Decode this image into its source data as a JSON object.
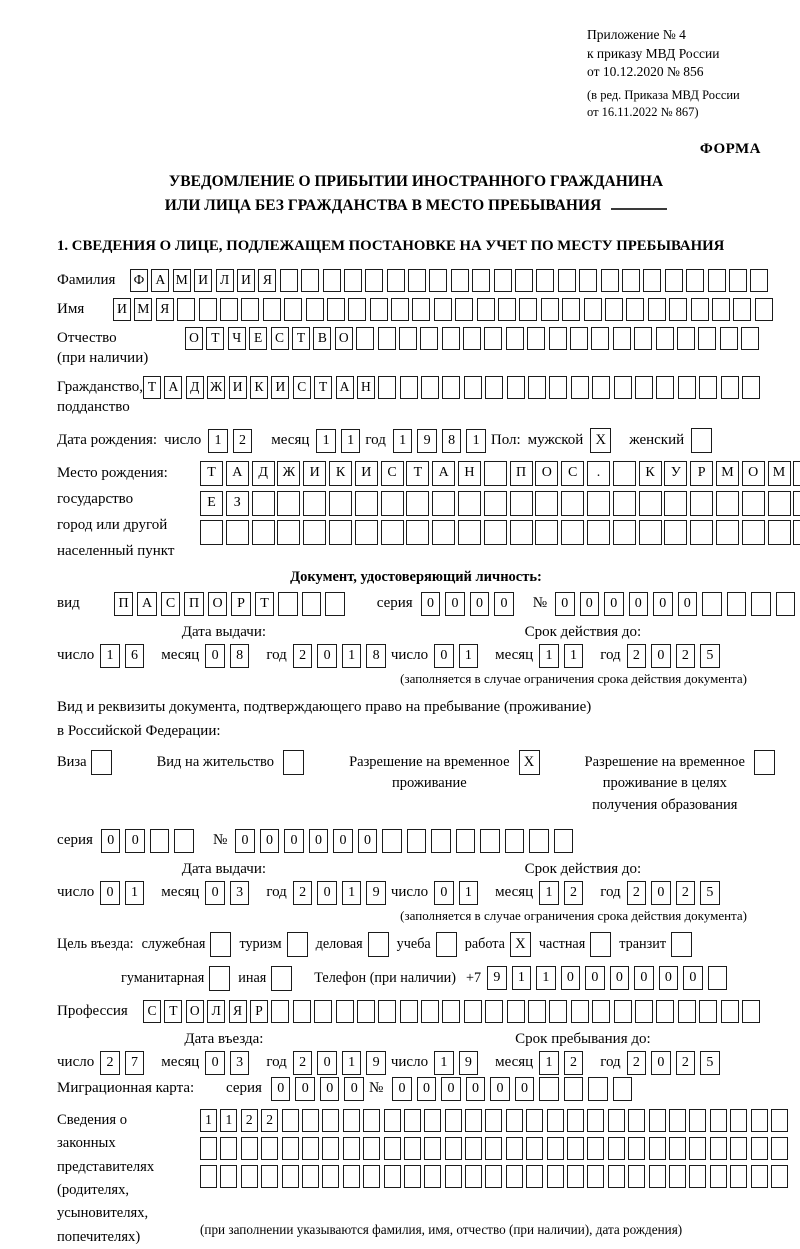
{
  "header": {
    "ref_lines": [
      "Приложение № 4",
      "к приказу МВД России",
      "от 10.12.2020 № 856"
    ],
    "ed_lines": [
      "(в ред. Приказа МВД России",
      "от 16.11.2022 № 867)"
    ],
    "form_label": "ФОРМА"
  },
  "title": {
    "line1": "УВЕДОМЛЕНИЕ О ПРИБЫТИИ ИНОСТРАННОГО ГРАЖДАНИНА",
    "line2": "ИЛИ ЛИЦА БЕЗ ГРАЖДАНСТВА В МЕСТО ПРЕБЫВАНИЯ"
  },
  "section1_heading": "1. СВЕДЕНИЯ О ЛИЦЕ, ПОДЛЕЖАЩЕМ ПОСТАНОВКЕ НА УЧЕТ ПО МЕСТУ ПРЕБЫВАНИЯ",
  "date_labels": {
    "day": "число",
    "month": "месяц",
    "year": "год"
  },
  "shared_labels": {
    "series": "серия",
    "number": "№"
  },
  "surname": {
    "label": "Фамилия",
    "cells": {
      "value": "ФАМИЛИЯ",
      "count": 30
    }
  },
  "name": {
    "label": "Имя",
    "cells": {
      "value": "ИМЯ",
      "count": 31
    }
  },
  "patronymic": {
    "label": "Отчество",
    "sublabel": "(при наличии)",
    "cells": {
      "value": "ОТЧЕСТВО",
      "count": 27
    }
  },
  "citizenship": {
    "label": "Гражданство,",
    "sublabel": "подданство",
    "cells": {
      "value": "ТАДЖИКИСТАН",
      "count": 29
    }
  },
  "birth_date": {
    "label": "Дата рождения:",
    "day": {
      "value": "12",
      "count": 2
    },
    "month": {
      "value": "11",
      "count": 2
    },
    "year": {
      "value": "1981",
      "count": 4
    },
    "sex_label": "Пол:",
    "male_label": "мужской",
    "male_box": {
      "value": "X",
      "count": 1
    },
    "female_label": "женский",
    "female_box": {
      "value": "",
      "count": 1
    }
  },
  "birth_place": {
    "label": "Место рождения:",
    "sub1": "государство",
    "sub2": "город или другой",
    "sub3": "населенный пункт",
    "row1": {
      "value": "ТАДЖИКИСТАН ПОС. КУРМОМБ",
      "count": 24
    },
    "row2": {
      "value": "ЕЗ",
      "count": 24
    },
    "row3": {
      "value": "",
      "count": 24
    }
  },
  "identity_doc": {
    "heading": "Документ, удостоверяющий личность:",
    "type_label": "вид",
    "type": {
      "value": "ПАСПОРТ",
      "count": 10
    },
    "series": {
      "value": "0000",
      "count": 4
    },
    "number": {
      "value": "000000",
      "count": 11
    }
  },
  "identity_dates": {
    "issue_title": "Дата выдачи:",
    "expiry_title": "Срок действия до:",
    "issue": {
      "day": {
        "value": "16",
        "count": 2
      },
      "month": {
        "value": "08",
        "count": 2
      },
      "year": {
        "value": "2018",
        "count": 4
      }
    },
    "expiry": {
      "day": {
        "value": "01",
        "count": 2
      },
      "month": {
        "value": "11",
        "count": 2
      },
      "year": {
        "value": "2025",
        "count": 4
      }
    },
    "note": "(заполняется в случае ограничения срока действия документа)"
  },
  "stay_doc": {
    "line1": "Вид и реквизиты документа, подтверждающего право на пребывание (проживание)",
    "line2": "в Российской Федерации:",
    "visa_label": "Виза",
    "visa_box": {
      "value": "",
      "count": 1
    },
    "residence_label": "Вид на жительство",
    "residence_box": {
      "value": "",
      "count": 1
    },
    "rvp_label1": "Разрешение на временное",
    "rvp_label2": "проживание",
    "rvp_box": {
      "value": "X",
      "count": 1
    },
    "rvp_edu_label1": "Разрешение на временное",
    "rvp_edu_label2": "проживание в целях",
    "rvp_edu_label3": "получения образования",
    "rvp_edu_box": {
      "value": "",
      "count": 1
    }
  },
  "stay_serial": {
    "series": {
      "value": "00",
      "count": 4
    },
    "number": {
      "value": "000000",
      "count": 14
    }
  },
  "stay_dates": {
    "issue_title": "Дата выдачи:",
    "expiry_title": "Срок действия до:",
    "issue": {
      "day": {
        "value": "01",
        "count": 2
      },
      "month": {
        "value": "03",
        "count": 2
      },
      "year": {
        "value": "2019",
        "count": 4
      }
    },
    "expiry": {
      "day": {
        "value": "01",
        "count": 2
      },
      "month": {
        "value": "12",
        "count": 2
      },
      "year": {
        "value": "2025",
        "count": 4
      }
    },
    "note": "(заполняется в случае ограничения срока действия документа)"
  },
  "entry_purpose": {
    "label": "Цель въезда:",
    "options": [
      {
        "label": "служебная",
        "box": {
          "value": "",
          "count": 1
        }
      },
      {
        "label": "туризм",
        "box": {
          "value": "",
          "count": 1
        }
      },
      {
        "label": "деловая",
        "box": {
          "value": "",
          "count": 1
        }
      },
      {
        "label": "учеба",
        "box": {
          "value": "",
          "count": 1
        }
      },
      {
        "label": "работа",
        "box": {
          "value": "X",
          "count": 1
        }
      },
      {
        "label": "частная",
        "box": {
          "value": "",
          "count": 1
        }
      },
      {
        "label": "транзит",
        "box": {
          "value": "",
          "count": 1
        }
      }
    ],
    "options2": [
      {
        "label": "гуманитарная",
        "box": {
          "value": "",
          "count": 1
        }
      },
      {
        "label": "иная",
        "box": {
          "value": "",
          "count": 1
        }
      }
    ],
    "phone_label": "Телефон (при наличии)",
    "phone_prefix": "+7",
    "phone": {
      "value": "911000000",
      "count": 10
    }
  },
  "profession": {
    "label": "Профессия",
    "cells": {
      "value": "СТОЛЯР",
      "count": 29
    }
  },
  "entry_dates": {
    "entry_title": "Дата въезда:",
    "stay_title": "Срок пребывания до:",
    "entry": {
      "day": {
        "value": "27",
        "count": 2
      },
      "month": {
        "value": "03",
        "count": 2
      },
      "year": {
        "value": "2019",
        "count": 4
      }
    },
    "stay": {
      "day": {
        "value": "19",
        "count": 2
      },
      "month": {
        "value": "12",
        "count": 2
      },
      "year": {
        "value": "2025",
        "count": 4
      }
    }
  },
  "migration_card": {
    "label": "Миграционная карта:",
    "series": {
      "value": "0000",
      "count": 4
    },
    "number": {
      "value": "000000",
      "count": 10
    }
  },
  "representatives": {
    "label_lines": [
      "Сведения о",
      "законных",
      "представителях",
      "(родителях,",
      "усыновителях,",
      "попечителях)"
    ],
    "row1": {
      "value": "1122",
      "count": 29
    },
    "row2": {
      "value": "",
      "count": 29
    },
    "row3": {
      "value": "",
      "count": 29
    },
    "note": "(при заполнении указываются фамилия, имя, отчество (при наличии), дата рождения)"
  }
}
